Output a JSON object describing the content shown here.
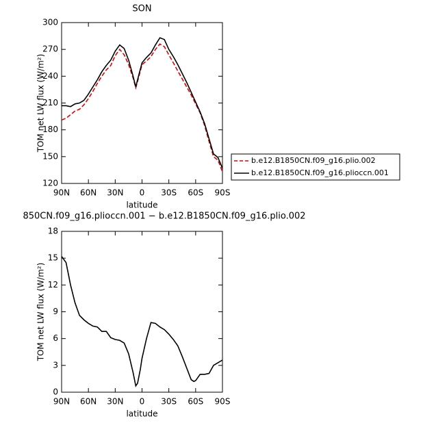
{
  "chart_data": [
    {
      "type": "line",
      "title": "SON",
      "xlabel": "latitude",
      "ylabel": "TOM net LW flux (W/m²)",
      "x": [
        90,
        85,
        80,
        75,
        70,
        65,
        60,
        55,
        50,
        45,
        40,
        35,
        30,
        25,
        20,
        15,
        10,
        7,
        5,
        0,
        -5,
        -10,
        -15,
        -20,
        -25,
        -30,
        -35,
        -40,
        -45,
        -50,
        -55,
        -60,
        -65,
        -70,
        -75,
        -80,
        -85,
        -90
      ],
      "series": [
        {
          "name": "b.e12.B1850CN.f09_g16.plio.002",
          "color": "#e00000",
          "dash": true,
          "values": [
            191,
            193,
            197,
            201,
            203,
            208,
            215,
            223,
            232,
            240,
            247,
            252,
            263,
            270,
            264,
            253,
            238,
            227,
            234,
            253,
            257,
            262,
            270,
            276,
            273,
            264,
            255,
            246,
            237,
            228,
            219,
            209,
            199,
            185,
            167,
            150,
            146,
            133
          ]
        },
        {
          "name": "b.e12.B1850CN.f09_g16.plioccn.001",
          "color": "#000000",
          "dash": false,
          "values": [
            207,
            207,
            206,
            209,
            210,
            213,
            220,
            228,
            236,
            245,
            252,
            258,
            268,
            275,
            271,
            258,
            240,
            228,
            236,
            255,
            261,
            266,
            275,
            283,
            281,
            270,
            262,
            253,
            243,
            233,
            222,
            211,
            200,
            187,
            170,
            153,
            149,
            137
          ]
        }
      ],
      "xlim": [
        90,
        -90
      ],
      "xticks": [
        {
          "value": 90,
          "label": "90N"
        },
        {
          "value": 60,
          "label": "60N"
        },
        {
          "value": 30,
          "label": "30N"
        },
        0,
        {
          "value": -30,
          "label": "30S"
        },
        {
          "value": -60,
          "label": "60S"
        },
        {
          "value": -90,
          "label": "90S"
        }
      ],
      "ylim": [
        120,
        300
      ],
      "yticks": [
        120,
        150,
        180,
        210,
        240,
        270,
        300
      ],
      "legend": "right"
    },
    {
      "type": "line",
      "title": "850CN.f09_g16.plioccn.001 − b.e12.B1850CN.f09_g16.plio.002",
      "xlabel": "latitude",
      "ylabel": "TOM net LW flux (W/m²)",
      "x": [
        90,
        85,
        80,
        75,
        70,
        65,
        60,
        55,
        50,
        45,
        40,
        35,
        30,
        25,
        20,
        15,
        10,
        7,
        5,
        2,
        0,
        -5,
        -10,
        -15,
        -20,
        -25,
        -30,
        -35,
        -40,
        -45,
        -50,
        -55,
        -58,
        -60,
        -65,
        -70,
        -75,
        -80,
        -85,
        -90
      ],
      "series": [
        {
          "color": "#000000",
          "dash": false,
          "values": [
            15.2,
            14.5,
            12,
            10,
            8.6,
            8.1,
            7.7,
            7.4,
            7.3,
            6.8,
            6.8,
            6.1,
            5.9,
            5.8,
            5.5,
            4.3,
            2.2,
            0.7,
            1,
            2.5,
            3.8,
            6,
            7.8,
            7.7,
            7.3,
            7,
            6.5,
            5.9,
            5.2,
            4,
            2.7,
            1.4,
            1.2,
            1.3,
            2,
            2,
            2.1,
            3,
            3.3,
            3.6
          ]
        }
      ],
      "xlim": [
        90,
        -90
      ],
      "xticks": [
        {
          "value": 90,
          "label": "90N"
        },
        {
          "value": 60,
          "label": "60N"
        },
        {
          "value": 30,
          "label": "30N"
        },
        0,
        {
          "value": -30,
          "label": "30S"
        },
        {
          "value": -60,
          "label": "60S"
        },
        {
          "value": -90,
          "label": "90S"
        }
      ],
      "ylim": [
        0,
        18
      ],
      "yticks": [
        0,
        3,
        6,
        9,
        12,
        15,
        18
      ]
    }
  ]
}
